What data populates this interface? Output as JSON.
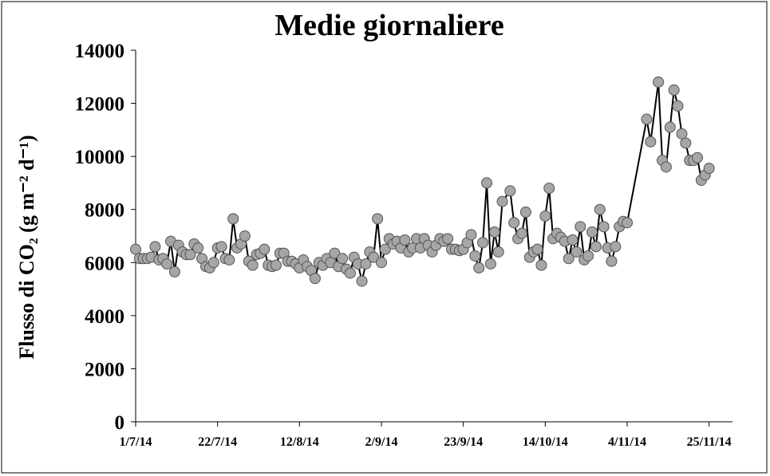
{
  "chart_data": {
    "type": "line",
    "title": "Medie giornaliere",
    "y_label": "Flusso di CO₂ (g m⁻² d⁻¹)",
    "x": [
      "1/7/14",
      "2/7/14",
      "3/7/14",
      "4/7/14",
      "5/7/14",
      "6/7/14",
      "7/7/14",
      "8/7/14",
      "9/7/14",
      "10/7/14",
      "11/7/14",
      "12/7/14",
      "13/7/14",
      "14/7/14",
      "15/7/14",
      "16/7/14",
      "17/7/14",
      "18/7/14",
      "19/7/14",
      "20/7/14",
      "21/7/14",
      "22/7/14",
      "23/7/14",
      "24/7/14",
      "25/7/14",
      "26/7/14",
      "27/7/14",
      "28/7/14",
      "29/7/14",
      "30/7/14",
      "31/7/14",
      "1/8/14",
      "2/8/14",
      "3/8/14",
      "4/8/14",
      "5/8/14",
      "6/8/14",
      "7/8/14",
      "8/8/14",
      "9/8/14",
      "10/8/14",
      "11/8/14",
      "12/8/14",
      "13/8/14",
      "14/8/14",
      "15/8/14",
      "16/8/14",
      "17/8/14",
      "18/8/14",
      "19/8/14",
      "20/8/14",
      "21/8/14",
      "22/8/14",
      "23/8/14",
      "24/8/14",
      "25/8/14",
      "26/8/14",
      "27/8/14",
      "28/8/14",
      "29/8/14",
      "30/8/14",
      "31/8/14",
      "1/9/14",
      "2/9/14",
      "3/9/14",
      "4/9/14",
      "5/9/14",
      "6/9/14",
      "7/9/14",
      "8/9/14",
      "9/9/14",
      "10/9/14",
      "11/9/14",
      "12/9/14",
      "13/9/14",
      "14/9/14",
      "15/9/14",
      "16/9/14",
      "17/9/14",
      "18/9/14",
      "19/9/14",
      "20/9/14",
      "21/9/14",
      "22/9/14",
      "23/9/14",
      "24/9/14",
      "25/9/14",
      "26/9/14",
      "27/9/14",
      "28/9/14",
      "29/9/14",
      "30/9/14",
      "1/10/14",
      "2/10/14",
      "3/10/14",
      "5/10/14",
      "6/10/14",
      "7/10/14",
      "8/10/14",
      "9/10/14",
      "10/10/14",
      "11/10/14",
      "12/10/14",
      "13/10/14",
      "14/10/14",
      "15/10/14",
      "16/10/14",
      "17/10/14",
      "18/10/14",
      "19/10/14",
      "20/10/14",
      "21/10/14",
      "22/10/14",
      "23/10/14",
      "24/10/14",
      "25/10/14",
      "26/10/14",
      "27/10/14",
      "28/10/14",
      "29/10/14",
      "30/10/14",
      "31/10/14",
      "1/11/14",
      "2/11/14",
      "3/11/14",
      "4/11/14",
      "9/11/14",
      "10/11/14",
      "12/11/14",
      "13/11/14",
      "14/11/14",
      "15/11/14",
      "16/11/14",
      "17/11/14",
      "18/11/14",
      "19/11/14",
      "20/11/14",
      "21/11/14",
      "22/11/14",
      "23/11/14",
      "24/11/14",
      "25/11/14"
    ],
    "values": [
      6500,
      6150,
      6150,
      6150,
      6200,
      6600,
      6100,
      6150,
      5950,
      6800,
      5650,
      6650,
      6400,
      6300,
      6300,
      6700,
      6550,
      6150,
      5850,
      5800,
      6000,
      6550,
      6600,
      6150,
      6100,
      7650,
      6550,
      6700,
      7000,
      6050,
      5900,
      6300,
      6350,
      6500,
      5900,
      5850,
      5900,
      6350,
      6350,
      6050,
      6050,
      5950,
      5800,
      6100,
      5850,
      5700,
      5400,
      6000,
      5900,
      6150,
      6000,
      6350,
      5850,
      6150,
      5750,
      5600,
      6200,
      5950,
      5300,
      5950,
      6400,
      6200,
      7650,
      6000,
      6500,
      6900,
      6700,
      6800,
      6550,
      6850,
      6400,
      6550,
      6900,
      6550,
      6900,
      6650,
      6400,
      6650,
      6900,
      6800,
      6900,
      6500,
      6500,
      6450,
      6500,
      6750,
      7050,
      6250,
      5800,
      6750,
      9000,
      5950,
      7150,
      6400,
      8300,
      8700,
      7500,
      6900,
      7100,
      7900,
      6200,
      6400,
      6500,
      5900,
      7750,
      8800,
      6900,
      7100,
      6950,
      6800,
      6150,
      6850,
      6400,
      7350,
      6100,
      6250,
      7150,
      6600,
      8000,
      7350,
      6550,
      6050,
      6600,
      7350,
      7550,
      7500,
      11400,
      10550,
      12800,
      9850,
      9600,
      11100,
      12500,
      11900,
      10850,
      10500,
      9850,
      9850,
      9950,
      9100,
      9300,
      9550
    ],
    "line_color": "#000000",
    "marker_color": "#a6a6a6",
    "xlim": [
      "1/7/14",
      "1/12/14"
    ],
    "xticks": [
      "1/7/14",
      "22/7/14",
      "12/8/14",
      "2/9/14",
      "23/9/14",
      "14/10/14",
      "4/11/14",
      "25/11/14"
    ],
    "ylim": [
      0,
      14000
    ],
    "yticks": [
      0,
      2000,
      4000,
      6000,
      8000,
      10000,
      12000,
      14000
    ],
    "grid": false
  }
}
